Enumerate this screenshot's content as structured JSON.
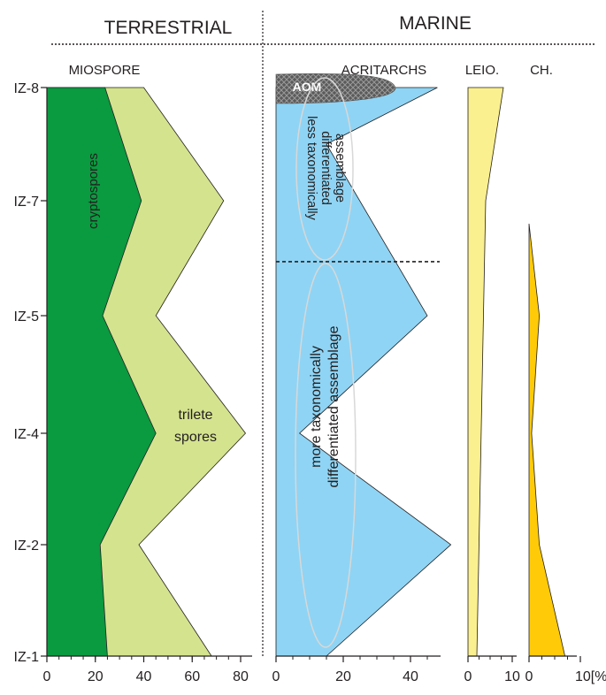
{
  "header": {
    "left_title": "TERRESTRIAL",
    "right_title": "MARINE"
  },
  "colors": {
    "cryptospores": "#0a9a40",
    "trilete_spores": "#d4e38e",
    "acritarchs": "#8fd4f4",
    "leio": "#fbf08f",
    "ch": "#ffcb08",
    "aom": "#5a5a5a",
    "axis": "#231f20"
  },
  "chart_data": [
    {
      "type": "area",
      "title": "MIOSPORE",
      "xlabel": "",
      "ylabel": "",
      "xlim": [
        0,
        85
      ],
      "x_ticks": [
        0,
        20,
        40,
        60,
        80
      ],
      "categories": [
        "IZ-1",
        "IZ-2",
        "IZ-4",
        "IZ-5",
        "IZ-7",
        "IZ-8"
      ],
      "category_levels": [
        1,
        2,
        3,
        4,
        5,
        6
      ],
      "series": [
        {
          "name": "cryptospores",
          "points": [
            [
              1,
              25
            ],
            [
              2,
              22
            ],
            [
              3,
              45
            ],
            [
              4,
              23
            ],
            [
              5,
              39
            ],
            [
              6,
              24
            ]
          ]
        },
        {
          "name": "trilete spores",
          "points": [
            [
              1,
              68
            ],
            [
              2,
              38
            ],
            [
              3,
              82
            ],
            [
              4,
              45
            ],
            [
              5,
              73
            ],
            [
              6,
              40
            ]
          ]
        }
      ]
    },
    {
      "type": "area",
      "title": "ACRITARCHS",
      "xlim": [
        0,
        60
      ],
      "x_ticks": [
        0,
        20,
        40
      ],
      "series": [
        {
          "name": "acritarchs",
          "points": [
            [
              1,
              15
            ],
            [
              2,
              52
            ],
            [
              3,
              7
            ],
            [
              4,
              45
            ],
            [
              5.5,
              15
            ],
            [
              6,
              48
            ]
          ]
        },
        {
          "name": "AOM",
          "points": [
            [
              6,
              25
            ],
            [
              6.12,
              0
            ]
          ]
        }
      ],
      "annotations": {
        "aom": "AOM",
        "upper_group": "less taxonomically differentiated assemblage",
        "upper_group_lines": [
          "less taxonomically",
          "differentiated",
          "assemblage"
        ],
        "lower_group": "more taxonomically differentiated assemblage",
        "lower_group_lines": [
          "more taxonomically",
          "differentiated  assemblage"
        ],
        "boundary_level": 4.47
      }
    },
    {
      "type": "area",
      "title": "LEIO.",
      "xlim": [
        0,
        10
      ],
      "x_ticks": [
        0,
        10
      ],
      "series": [
        {
          "name": "LEIO.",
          "points": [
            [
              1,
              2
            ],
            [
              5,
              4
            ],
            [
              6,
              8
            ]
          ]
        }
      ]
    },
    {
      "type": "area",
      "title": "CH.",
      "xlim": [
        0,
        10
      ],
      "x_ticks": [
        0,
        10
      ],
      "unit_label": "10[%]",
      "series": [
        {
          "name": "CH.",
          "points": [
            [
              1,
              7
            ],
            [
              2,
              2
            ],
            [
              3,
              0.5
            ],
            [
              4,
              2
            ],
            [
              4.8,
              0
            ]
          ]
        }
      ]
    }
  ],
  "labels": {
    "cryptospores": "cryptospores",
    "trilete_line1": "trilete",
    "trilete_line2": "spores"
  }
}
